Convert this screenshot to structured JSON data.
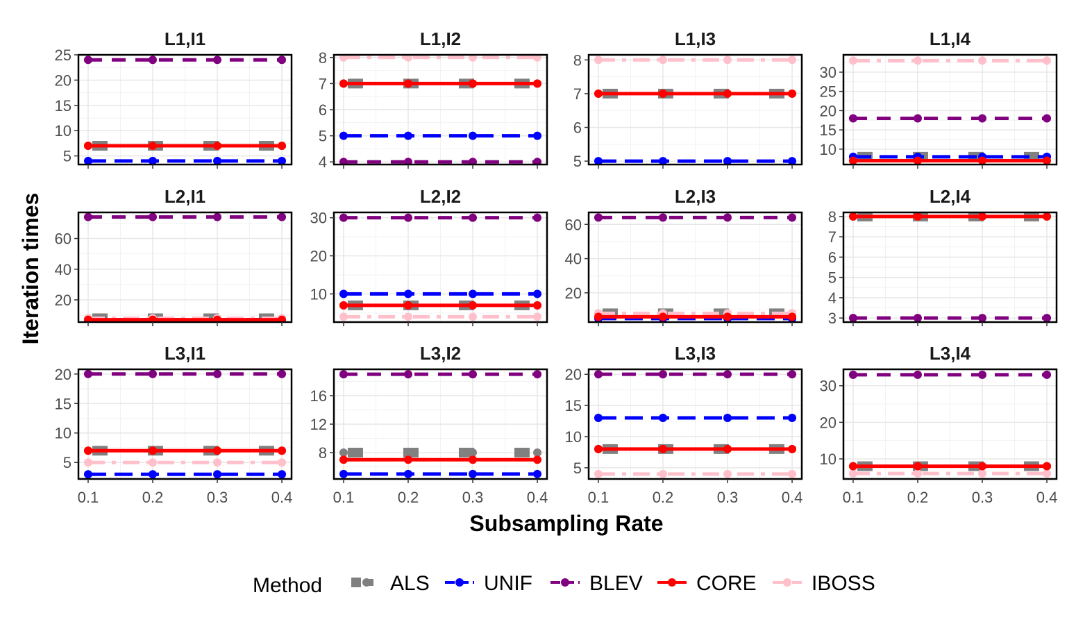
{
  "chart_data": {
    "type": "line",
    "xlabel": "Subsampling Rate",
    "ylabel": "Iteration times",
    "x": [
      0.1,
      0.2,
      0.3,
      0.4
    ],
    "x_ticks": [
      "0.1",
      "0.2",
      "0.3",
      "0.4"
    ],
    "legend": {
      "title": "Method",
      "placement": "bottom",
      "entries": [
        "ALS",
        "UNIF",
        "BLEV",
        "CORE",
        "IBOSS"
      ]
    },
    "method_colors": {
      "ALS": "#808080",
      "UNIF": "#0000ff",
      "BLEV": "#800080",
      "CORE": "#ff0000",
      "IBOSS": "#ffc0cb"
    },
    "grid": true,
    "panels": [
      {
        "title": "L1,I1",
        "ylim": [
          3.3,
          25
        ],
        "yticks": [
          5,
          10,
          15,
          20,
          25
        ],
        "series": {
          "ALS": [
            7,
            7,
            7,
            7
          ],
          "UNIF": [
            4,
            4,
            4,
            4
          ],
          "BLEV": [
            24,
            24,
            24,
            24
          ],
          "CORE": [
            7,
            7,
            7,
            7
          ],
          "IBOSS": [
            7,
            7,
            7,
            7
          ]
        }
      },
      {
        "title": "L1,I2",
        "ylim": [
          3.9,
          8.1
        ],
        "yticks": [
          4,
          5,
          6,
          7,
          8
        ],
        "series": {
          "ALS": [
            7,
            7,
            7,
            7
          ],
          "UNIF": [
            5,
            5,
            5,
            5
          ],
          "BLEV": [
            4,
            4,
            4,
            4
          ],
          "CORE": [
            7,
            7,
            7,
            7
          ],
          "IBOSS": [
            8,
            8,
            8,
            8
          ]
        }
      },
      {
        "title": "L1,I3",
        "ylim": [
          4.9,
          8.15
        ],
        "yticks": [
          5,
          6,
          7,
          8
        ],
        "series": {
          "ALS": [
            7,
            7,
            7,
            7
          ],
          "UNIF": [
            5,
            5,
            5,
            5
          ],
          "BLEV": [],
          "CORE": [
            7,
            7,
            7,
            7
          ],
          "IBOSS": [
            8,
            8,
            8,
            8
          ]
        }
      },
      {
        "title": "L1,I4",
        "ylim": [
          6,
          34.5
        ],
        "yticks": [
          10,
          15,
          20,
          25,
          30
        ],
        "series": {
          "ALS": [
            8,
            8,
            8,
            8
          ],
          "UNIF": [
            8,
            8,
            8,
            8
          ],
          "BLEV": [
            18,
            18,
            18,
            18
          ],
          "CORE": [
            7,
            7,
            7,
            7
          ],
          "IBOSS": [
            33,
            33,
            33,
            33
          ]
        }
      },
      {
        "title": "L2,I1",
        "ylim": [
          5.5,
          77
        ],
        "yticks": [
          20,
          40,
          60
        ],
        "series": {
          "ALS": [
            8,
            8,
            8,
            8
          ],
          "UNIF": [
            7,
            7,
            7,
            7
          ],
          "BLEV": [
            74,
            74,
            74,
            74
          ],
          "CORE": [
            7,
            7,
            7,
            7
          ],
          "IBOSS": [
            8,
            8,
            8,
            8
          ]
        }
      },
      {
        "title": "L2,I2",
        "ylim": [
          2.6,
          31.4
        ],
        "yticks": [
          10,
          20,
          30
        ],
        "series": {
          "ALS": [
            7,
            7,
            7,
            7
          ],
          "UNIF": [
            10,
            10,
            10,
            10
          ],
          "BLEV": [
            30,
            30,
            30,
            30
          ],
          "CORE": [
            7,
            7,
            7,
            7
          ],
          "IBOSS": [
            4,
            4,
            4,
            4
          ]
        }
      },
      {
        "title": "L2,I3",
        "ylim": [
          2.9,
          67
        ],
        "yticks": [
          20,
          40,
          60
        ],
        "series": {
          "ALS": [
            8,
            8,
            8,
            8
          ],
          "UNIF": [
            5,
            5,
            5,
            5
          ],
          "BLEV": [
            64,
            64,
            64,
            64
          ],
          "CORE": [
            6,
            6,
            6,
            6
          ],
          "IBOSS": [
            8,
            8,
            8,
            8
          ]
        }
      },
      {
        "title": "L2,I4",
        "ylim": [
          2.8,
          8.2
        ],
        "yticks": [
          3,
          4,
          5,
          6,
          7,
          8
        ],
        "series": {
          "ALS": [
            8,
            8,
            8,
            8
          ],
          "UNIF": [],
          "BLEV": [
            3,
            3,
            3,
            3
          ],
          "CORE": [
            8,
            8,
            8,
            8
          ],
          "IBOSS": [
            8,
            8,
            8,
            8
          ]
        }
      },
      {
        "title": "L3,I1",
        "ylim": [
          2.2,
          20.8
        ],
        "yticks": [
          5,
          10,
          15,
          20
        ],
        "series": {
          "ALS": [
            7,
            7,
            7,
            7
          ],
          "UNIF": [
            3,
            3,
            3,
            3
          ],
          "BLEV": [
            20,
            20,
            20,
            20
          ],
          "CORE": [
            7,
            7,
            7,
            7
          ],
          "IBOSS": [
            5,
            5,
            5,
            5
          ]
        }
      },
      {
        "title": "L3,I2",
        "ylim": [
          4.3,
          19.7
        ],
        "yticks": [
          8,
          12,
          16
        ],
        "series": {
          "ALS": [
            8,
            8,
            8,
            8
          ],
          "UNIF": [
            5,
            5,
            5,
            5
          ],
          "BLEV": [
            19,
            19,
            19,
            19
          ],
          "CORE": [
            7,
            7,
            7,
            7
          ],
          "IBOSS": [
            7,
            7,
            7,
            7
          ]
        }
      },
      {
        "title": "L3,I3",
        "ylim": [
          3.2,
          20.8
        ],
        "yticks": [
          5,
          10,
          15,
          20
        ],
        "series": {
          "ALS": [
            8,
            8,
            8,
            8
          ],
          "UNIF": [
            13,
            13,
            13,
            13
          ],
          "BLEV": [
            20,
            20,
            20,
            20
          ],
          "CORE": [
            8,
            8,
            8,
            8
          ],
          "IBOSS": [
            4,
            4,
            4,
            4
          ]
        }
      },
      {
        "title": "L3,I4",
        "ylim": [
          4.5,
          34.5
        ],
        "yticks": [
          10,
          20,
          30
        ],
        "series": {
          "ALS": [
            8,
            8,
            8,
            8
          ],
          "UNIF": [],
          "BLEV": [
            33,
            33,
            33,
            33
          ],
          "CORE": [
            8,
            8,
            8,
            8
          ],
          "IBOSS": [
            6,
            6,
            6,
            6
          ]
        }
      }
    ]
  }
}
